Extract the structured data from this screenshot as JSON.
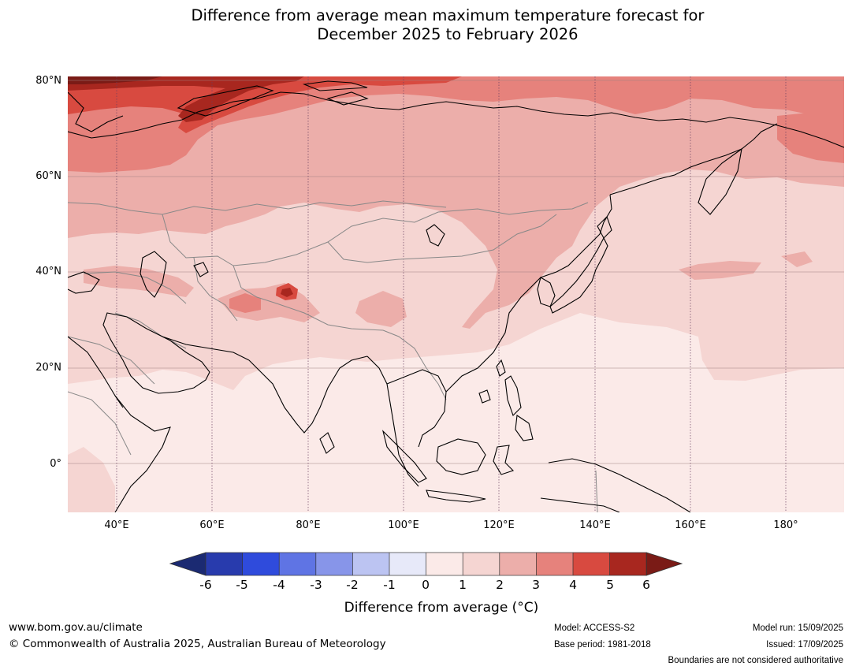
{
  "header": {
    "title_line1": "Difference from average mean maximum temperature forecast for",
    "title_line2": "December 2025 to February 2026"
  },
  "map": {
    "latitude_labels": [
      "80°N",
      "60°N",
      "40°N",
      "20°N",
      "0°"
    ],
    "longitude_labels": [
      "40°E",
      "60°E",
      "80°E",
      "100°E",
      "120°E",
      "140°E",
      "160°E",
      "180°"
    ],
    "region": "Asia",
    "colors": {
      "ocean_base": "#fbeae8",
      "plus1": "#f5d5d2",
      "plus2": "#ecaeaa",
      "plus3": "#e6827c",
      "plus4": "#d84a40",
      "plus5": "#a8271f",
      "plus6": "#7a1b16"
    }
  },
  "colorbar": {
    "tick_labels": [
      "-6",
      "-5",
      "-4",
      "-3",
      "-2",
      "-1",
      "0",
      "1",
      "2",
      "3",
      "4",
      "5",
      "6"
    ],
    "colors": [
      "#1b2a72",
      "#283bad",
      "#2f4bdc",
      "#5f74e4",
      "#8795e9",
      "#bcc4f2",
      "#e7e9f9",
      "#fbeae8",
      "#f5d5d2",
      "#ecaeaa",
      "#e6827c",
      "#d84a40",
      "#a8271f",
      "#7a1b16"
    ],
    "label": "Difference from average (°C)"
  },
  "footer": {
    "website": "www.bom.gov.au/climate",
    "copyright": "© Commonwealth of Australia 2025, Australian Bureau of Meteorology",
    "model": "Model: ACCESS-S2",
    "base_period": "Base period: 1981-2018",
    "model_run": "Model run: 15/09/2025",
    "issued": "Issued: 17/09/2025",
    "disclaimer": "Boundaries are not considered authoritative"
  }
}
